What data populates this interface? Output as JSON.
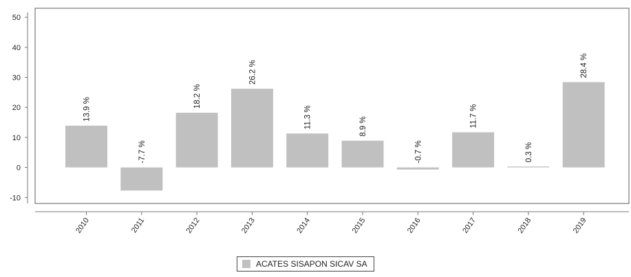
{
  "chart_data": {
    "type": "bar",
    "categories": [
      "2010",
      "2011",
      "2012",
      "2013",
      "2014",
      "2015",
      "2016",
      "2017",
      "2018",
      "2019"
    ],
    "series": [
      {
        "name": "ACATES SISAPON SICAV SA",
        "values": [
          13.9,
          -7.7,
          18.2,
          26.2,
          11.3,
          8.9,
          -0.7,
          11.7,
          0.3,
          28.4
        ],
        "labels": [
          "13.9 %",
          "-7.7 %",
          "18.2 %",
          "26.2 %",
          "11.3 %",
          "8.9 %",
          "-0.7 %",
          "11.7 %",
          "0.3 %",
          "28.4 %"
        ],
        "color": "#c0c0c0"
      }
    ],
    "ylim": [
      -12,
      53
    ],
    "yticks": [
      -10,
      0,
      10,
      20,
      30,
      40,
      50
    ],
    "ytick_labels": [
      "-10",
      "0",
      "10",
      "20",
      "30",
      "40",
      "50"
    ],
    "title": "",
    "xlabel": "",
    "ylabel": "",
    "grid": false,
    "legend_position": "bottom-center",
    "colors": {
      "bar": "#c0c0c0",
      "axis": "#777777",
      "text": "#222222"
    }
  }
}
